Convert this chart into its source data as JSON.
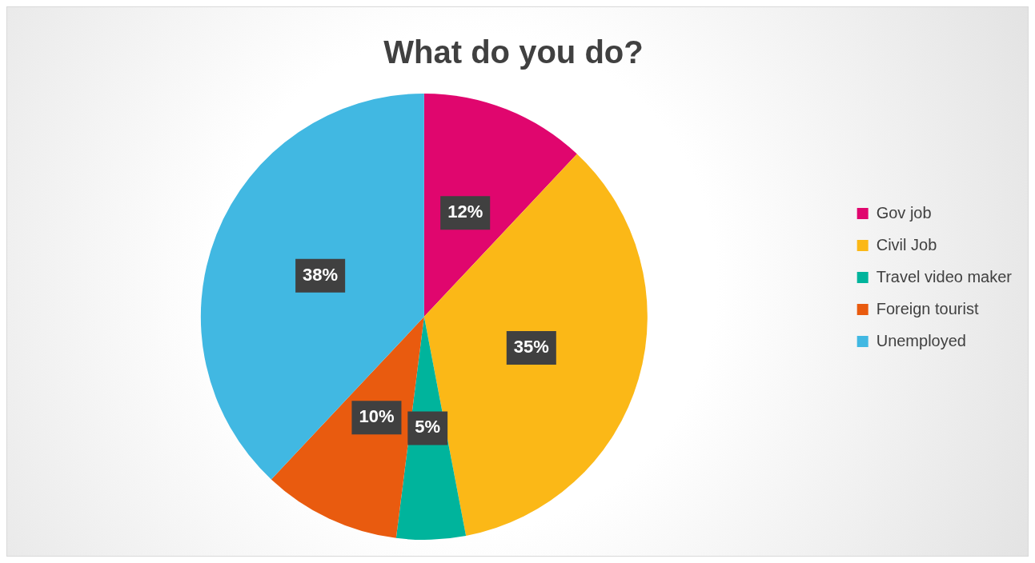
{
  "chart_data": {
    "type": "pie",
    "title": "What do you do?",
    "categories": [
      "Gov job",
      "Civil Job",
      "Travel video maker",
      "Foreign tourist",
      "Unemployed"
    ],
    "values": [
      12,
      35,
      5,
      10,
      38
    ],
    "colors": [
      "#e0066e",
      "#fbb817",
      "#00b49c",
      "#e95b0f",
      "#41b8e2"
    ],
    "value_labels": [
      "12%",
      "35%",
      "5%",
      "10%",
      "38%"
    ],
    "legend": "right"
  }
}
